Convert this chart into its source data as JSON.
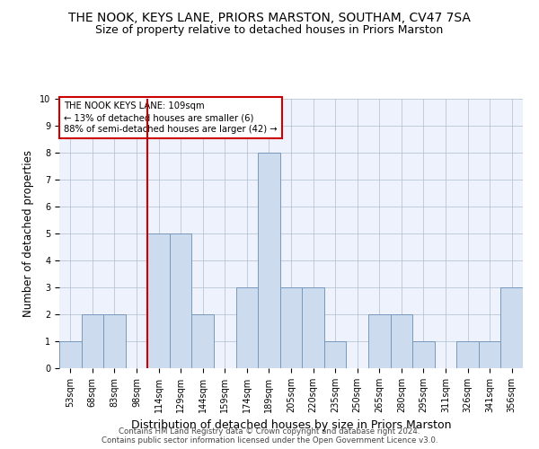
{
  "title": "THE NOOK, KEYS LANE, PRIORS MARSTON, SOUTHAM, CV47 7SA",
  "subtitle": "Size of property relative to detached houses in Priors Marston",
  "xlabel": "Distribution of detached houses by size in Priors Marston",
  "ylabel": "Number of detached properties",
  "categories": [
    "53sqm",
    "68sqm",
    "83sqm",
    "98sqm",
    "114sqm",
    "129sqm",
    "144sqm",
    "159sqm",
    "174sqm",
    "189sqm",
    "205sqm",
    "220sqm",
    "235sqm",
    "250sqm",
    "265sqm",
    "280sqm",
    "295sqm",
    "311sqm",
    "326sqm",
    "341sqm",
    "356sqm"
  ],
  "values": [
    1,
    2,
    2,
    0,
    5,
    5,
    2,
    0,
    3,
    8,
    3,
    3,
    1,
    0,
    2,
    2,
    1,
    0,
    1,
    1,
    3
  ],
  "bar_color": "#ccdcee",
  "bar_edge_color": "#7799bb",
  "vline_color": "#cc0000",
  "annotation_text": "THE NOOK KEYS LANE: 109sqm\n← 13% of detached houses are smaller (6)\n88% of semi-detached houses are larger (42) →",
  "annotation_box_color": "#cc0000",
  "ylim": [
    0,
    10
  ],
  "yticks": [
    0,
    1,
    2,
    3,
    4,
    5,
    6,
    7,
    8,
    9,
    10
  ],
  "footer_line1": "Contains HM Land Registry data © Crown copyright and database right 2024.",
  "footer_line2": "Contains public sector information licensed under the Open Government Licence v3.0.",
  "background_color": "#eef2fc",
  "grid_color": "#b0bece",
  "title_fontsize": 10,
  "subtitle_fontsize": 9,
  "tick_fontsize": 7,
  "ylabel_fontsize": 8.5,
  "xlabel_fontsize": 9,
  "footer_fontsize": 6.2
}
